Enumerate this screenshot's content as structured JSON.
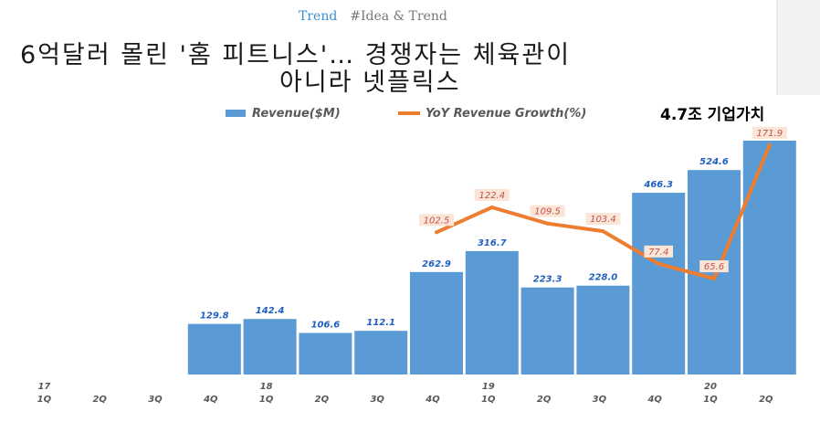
{
  "header": {
    "category": "Trend",
    "tags": "#Idea & Trend",
    "title_line1": "6억달러 몰린 '홈 피트니스'… 경쟁자는 체육관이",
    "title_line2": "아니라 넷플릭스"
  },
  "colors": {
    "bar": "#5b9bd5",
    "line": "#ed7d31",
    "label_box": "#fbe5d6"
  },
  "chart_data": {
    "type": "bar",
    "title": "",
    "callout": "4.7조 기업가치",
    "legend": [
      "Revenue($M)",
      "YoY Revenue Growth(%)"
    ],
    "categories": [
      "17 1Q",
      "2Q",
      "3Q",
      "4Q",
      "18 1Q",
      "2Q",
      "3Q",
      "4Q",
      "19 1Q",
      "2Q",
      "3Q",
      "4Q",
      "20 1Q",
      "2Q"
    ],
    "tick_quarters": [
      "1Q",
      "2Q",
      "3Q",
      "4Q",
      "1Q",
      "2Q",
      "3Q",
      "4Q",
      "1Q",
      "2Q",
      "3Q",
      "4Q",
      "1Q",
      "2Q"
    ],
    "tick_years": [
      "17",
      "",
      "",
      "",
      "18",
      "",
      "",
      "",
      "19",
      "",
      "",
      "",
      "20",
      ""
    ],
    "series": [
      {
        "name": "Revenue($M)",
        "type": "bar",
        "values": [
          null,
          null,
          null,
          129.8,
          142.4,
          106.6,
          112.1,
          262.9,
          316.7,
          223.3,
          228.0,
          466.3,
          524.6,
          600
        ],
        "labels": [
          "",
          "",
          "",
          "129.8",
          "142.4",
          "106.6",
          "112.1",
          "262.9",
          "316.7",
          "223.3",
          "228.0",
          "466.3",
          "524.6",
          ""
        ]
      },
      {
        "name": "YoY Revenue Growth(%)",
        "type": "line",
        "values": [
          null,
          null,
          null,
          null,
          null,
          null,
          null,
          102.5,
          122.4,
          109.5,
          103.4,
          77.4,
          65.6,
          171.9
        ],
        "labels": [
          "",
          "",
          "",
          "",
          "",
          "",
          "",
          "102.5",
          "122.4",
          "109.5",
          "103.4",
          "77.4",
          "65.6",
          "171.9"
        ]
      }
    ],
    "ylim": [
      0,
      600
    ],
    "ylim_growth": [
      30,
      190
    ],
    "grid": false
  }
}
